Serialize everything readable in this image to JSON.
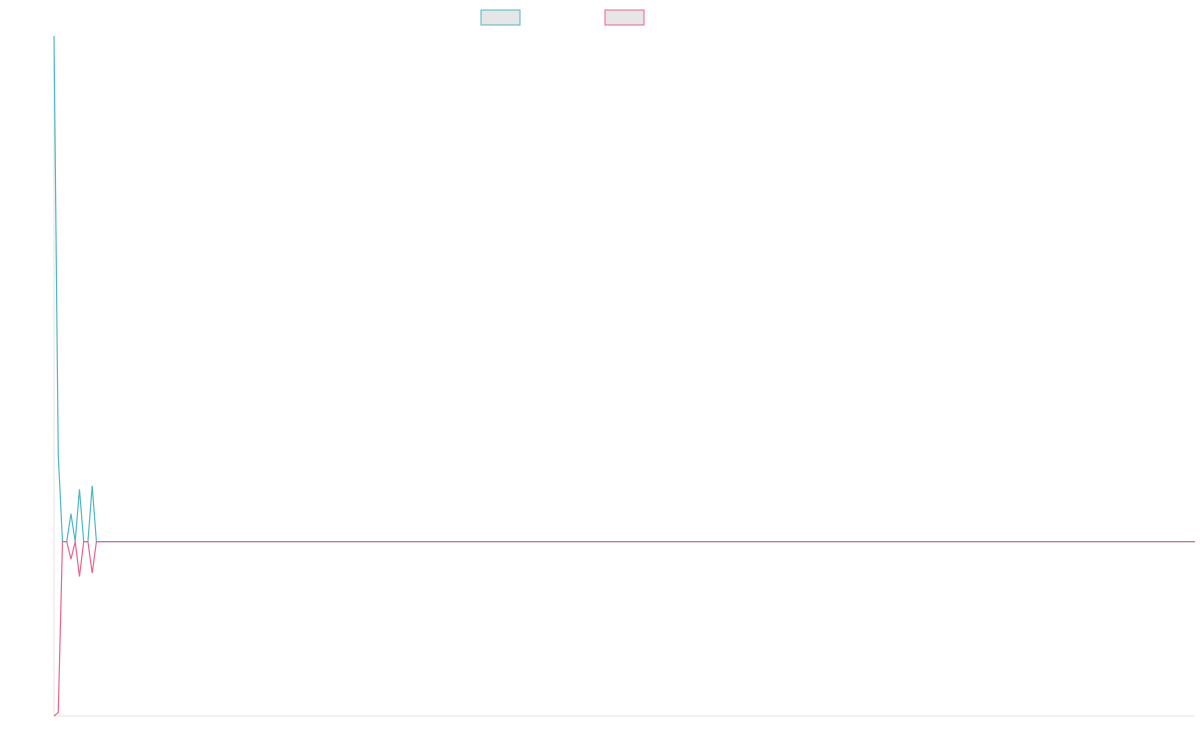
{
  "chart_data": {
    "type": "line",
    "title": "",
    "xlabel": "",
    "ylabel": "",
    "grid": false,
    "legend_position": "top-center",
    "x": [
      0,
      1,
      2,
      3,
      4,
      5,
      6,
      7,
      8,
      9,
      10,
      11,
      12,
      269
    ],
    "xlim": [
      0,
      269
    ],
    "ylim": [
      -1.0,
      2.9
    ],
    "series": [
      {
        "name": "",
        "color": "#4bb8c3",
        "fill": "#e6e6e6",
        "values": [
          2.9,
          0.5,
          0.0,
          0.0,
          0.16,
          0.0,
          0.3,
          0.0,
          0.0,
          0.32,
          0.0,
          0.0,
          0.0,
          0.0
        ]
      },
      {
        "name": "",
        "color": "#ec6486",
        "fill": "#e6e6e6",
        "values": [
          -1.0,
          -0.98,
          0.0,
          0.0,
          -0.1,
          0.0,
          -0.2,
          0.0,
          0.0,
          -0.18,
          0.0,
          0.0,
          0.0,
          0.0
        ]
      }
    ]
  }
}
